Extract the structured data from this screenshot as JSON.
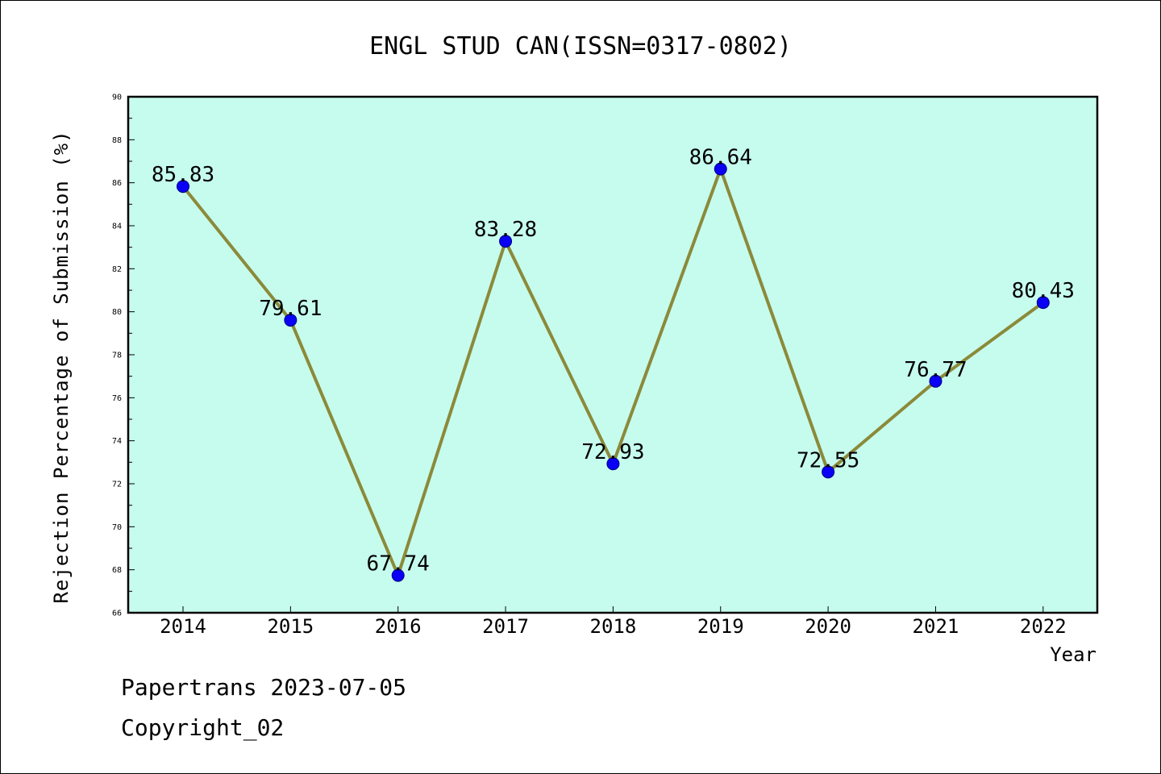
{
  "chart_data": {
    "type": "line",
    "title": "ENGL STUD CAN(ISSN=0317-0802)",
    "xlabel": "Year",
    "ylabel": "Rejection Percentage of Submission (%)",
    "categories": [
      "2014",
      "2015",
      "2016",
      "2017",
      "2018",
      "2019",
      "2020",
      "2021",
      "2022"
    ],
    "series": [
      {
        "values": [
          85.83,
          79.61,
          67.74,
          83.28,
          72.93,
          86.64,
          72.55,
          76.77,
          80.43
        ],
        "value_labels": [
          "85.83",
          "79.61",
          "67.74",
          "83.28",
          "72.93",
          "86.64",
          "72.55",
          "76.77",
          "80.43"
        ]
      }
    ],
    "ylim": [
      66,
      90
    ],
    "yticks": [
      "66",
      "68",
      "70",
      "72",
      "74",
      "76",
      "78",
      "80",
      "82",
      "84",
      "86",
      "88",
      "90"
    ],
    "grid": false,
    "colors": {
      "plot_background": "#c6fcee",
      "line": "#8b8a3a",
      "marker": "#0a00f5",
      "marker_edge": "#000080"
    }
  },
  "footer": {
    "watermark": "Papertrans 2023-07-05",
    "copyright": "Copyright_02"
  }
}
